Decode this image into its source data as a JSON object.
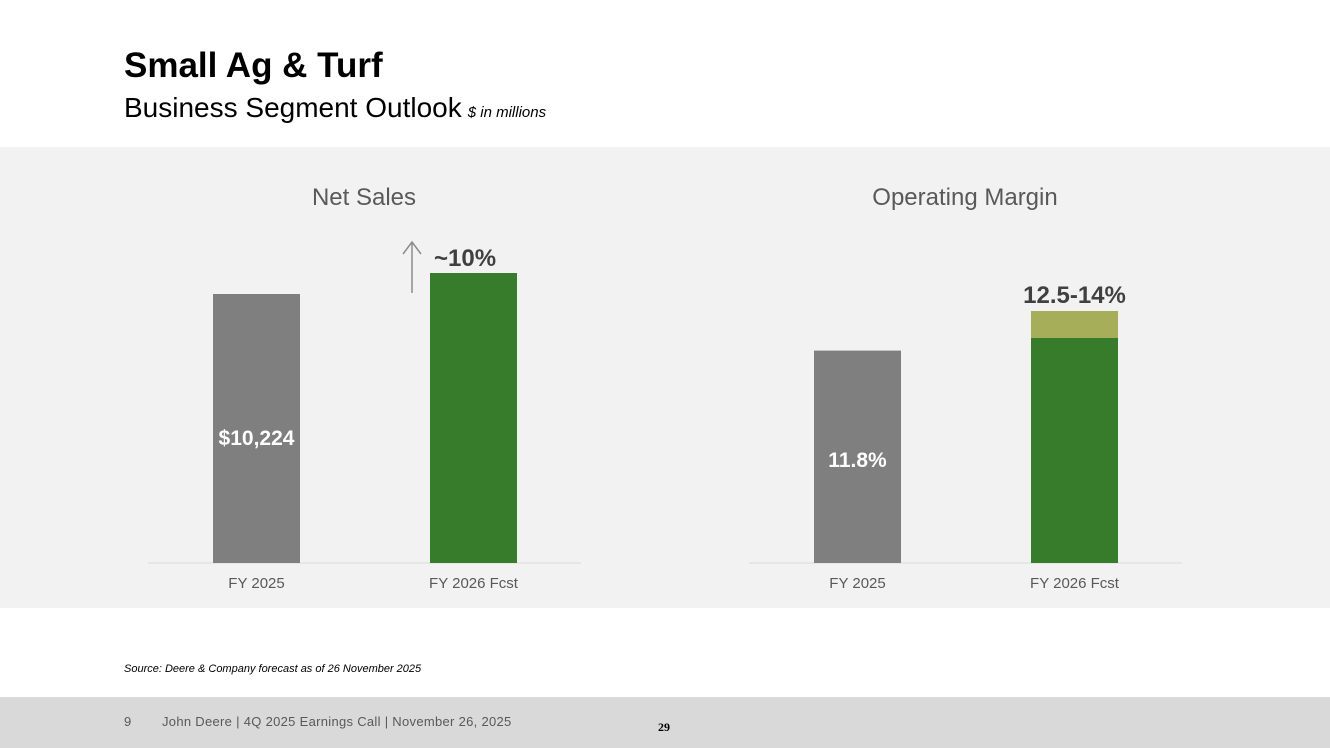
{
  "header": {
    "title": "Small Ag & Turf",
    "subtitle": "Business Segment Outlook",
    "units_note": "$ in millions"
  },
  "colors": {
    "gray_bar": "#7f7f7f",
    "green_bar": "#367c2b",
    "range_bar": "#a7ae5a",
    "panel": "#f2f2f2"
  },
  "chart_data": [
    {
      "type": "bar",
      "title": "Net Sales",
      "categories": [
        "FY 2025",
        "FY 2026 Fcst"
      ],
      "values": [
        10224,
        null
      ],
      "data_labels": [
        "$10,224",
        "~10%"
      ],
      "growth_pct": 10,
      "annotation": "up-arrow",
      "colors": [
        "#7f7f7f",
        "#367c2b"
      ]
    },
    {
      "type": "bar",
      "title": "Operating Margin",
      "categories": [
        "FY 2025",
        "FY 2026 Fcst"
      ],
      "values": [
        11.8,
        [
          12.5,
          14
        ]
      ],
      "data_labels": [
        "11.8%",
        "12.5-14%"
      ],
      "unit": "%",
      "colors": [
        "#7f7f7f",
        "#367c2b",
        "#a7ae5a"
      ]
    }
  ],
  "footnote": "Source: Deere & Company forecast as of 26 November 2025",
  "footer": {
    "slide_number": "9",
    "text": "John Deere | 4Q 2025 Earnings Call | November 26, 2025",
    "page": "29"
  }
}
